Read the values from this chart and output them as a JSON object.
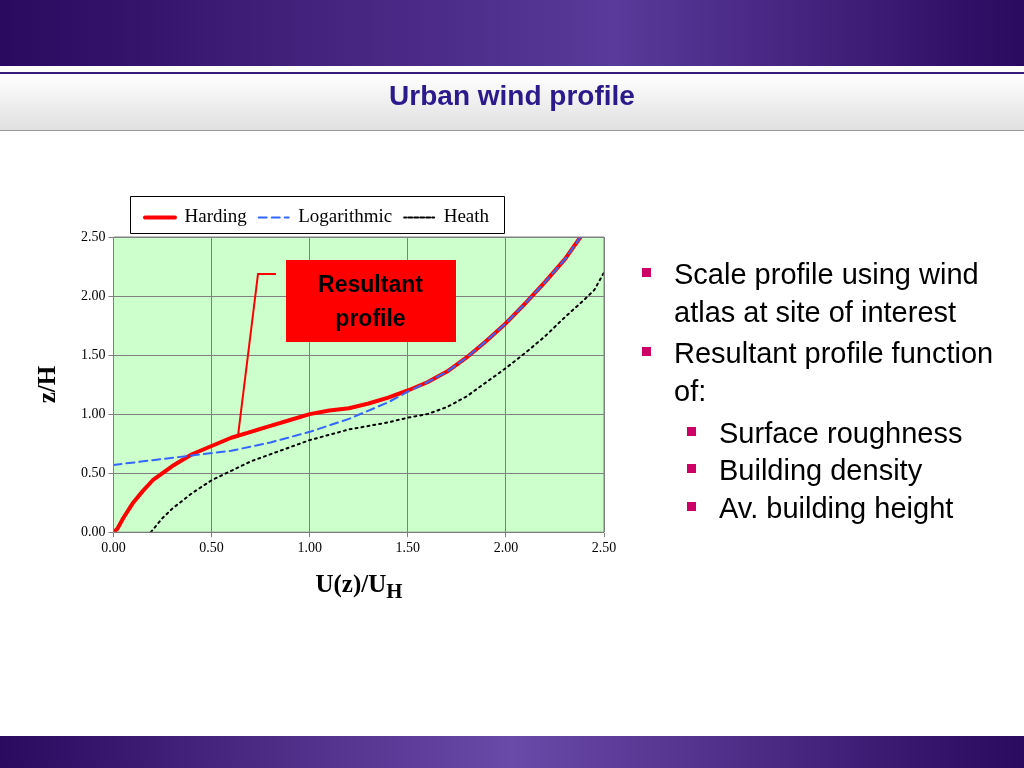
{
  "chart_data": {
    "type": "line",
    "title": "Urban wind profile",
    "xlabel": "U(z)/U$_{H}$",
    "ylabel": "z/H",
    "xlim": [
      0,
      2.5
    ],
    "ylim": [
      0,
      2.5
    ],
    "xticks": [
      {
        "value": 0,
        "label": "0.00"
      },
      {
        "value": 0.5,
        "label": "0.50"
      },
      {
        "value": 1,
        "label": "1.00"
      },
      {
        "value": 1.5,
        "label": "1.50"
      },
      {
        "value": 2,
        "label": "2.00"
      },
      {
        "value": 2.5,
        "label": "2.50"
      }
    ],
    "yticks": [
      {
        "value": 0,
        "label": "0.00"
      },
      {
        "value": 0.5,
        "label": "0.50"
      },
      {
        "value": 1,
        "label": "1.00"
      },
      {
        "value": 1.5,
        "label": "1.50"
      },
      {
        "value": 2,
        "label": "2.00"
      },
      {
        "value": 2.5,
        "label": "2.50"
      }
    ],
    "grid": true,
    "legend": "top",
    "marker": "none",
    "series": [
      {
        "name": "Harding",
        "color": "#ff0000",
        "line_style": "solid",
        "x": [
          0,
          0.02,
          0.05,
          0.1,
          0.15,
          0.2,
          0.3,
          0.4,
          0.5,
          0.6,
          0.7,
          0.8,
          0.9,
          1.0,
          1.1,
          1.2,
          1.3,
          1.4,
          1.5,
          1.6,
          1.7,
          1.8,
          1.9,
          2.0,
          2.1,
          2.2,
          2.3,
          2.38
        ],
        "values": [
          0,
          0.03,
          0.12,
          0.25,
          0.35,
          0.44,
          0.56,
          0.66,
          0.73,
          0.8,
          0.85,
          0.9,
          0.95,
          1.0,
          1.03,
          1.05,
          1.09,
          1.14,
          1.2,
          1.27,
          1.36,
          1.48,
          1.62,
          1.77,
          1.94,
          2.12,
          2.31,
          2.5
        ]
      },
      {
        "name": "Logarithmic",
        "color": "#3366ff",
        "line_style": "dashed",
        "x": [
          0,
          0.2,
          0.4,
          0.6,
          0.8,
          1.0,
          1.2,
          1.4,
          1.5,
          1.6,
          1.7,
          1.8,
          1.9,
          2.0,
          2.1,
          2.2,
          2.3,
          2.38
        ],
        "values": [
          0.57,
          0.61,
          0.65,
          0.69,
          0.76,
          0.85,
          0.96,
          1.1,
          1.19,
          1.27,
          1.36,
          1.48,
          1.62,
          1.77,
          1.94,
          2.12,
          2.31,
          2.5
        ]
      },
      {
        "name": "Heath",
        "color": "#000000",
        "line_style": "dotted",
        "x": [
          0.19,
          0.25,
          0.3,
          0.4,
          0.5,
          0.6,
          0.7,
          0.8,
          1.0,
          1.2,
          1.4,
          1.5,
          1.6,
          1.7,
          1.8,
          1.9,
          2.0,
          2.1,
          2.2,
          2.3,
          2.4,
          2.45,
          2.5
        ],
        "values": [
          0,
          0.12,
          0.2,
          0.33,
          0.44,
          0.52,
          0.6,
          0.66,
          0.78,
          0.87,
          0.93,
          0.97,
          1.0,
          1.06,
          1.15,
          1.27,
          1.39,
          1.52,
          1.66,
          1.82,
          1.97,
          2.05,
          2.2
        ]
      }
    ],
    "annotations": [
      "Resultant profile",
      "Scale profile using wind atlas at site of interest",
      "Resultant profile function of:",
      "Surface roughness",
      "Building density",
      "Av. building height"
    ]
  }
}
